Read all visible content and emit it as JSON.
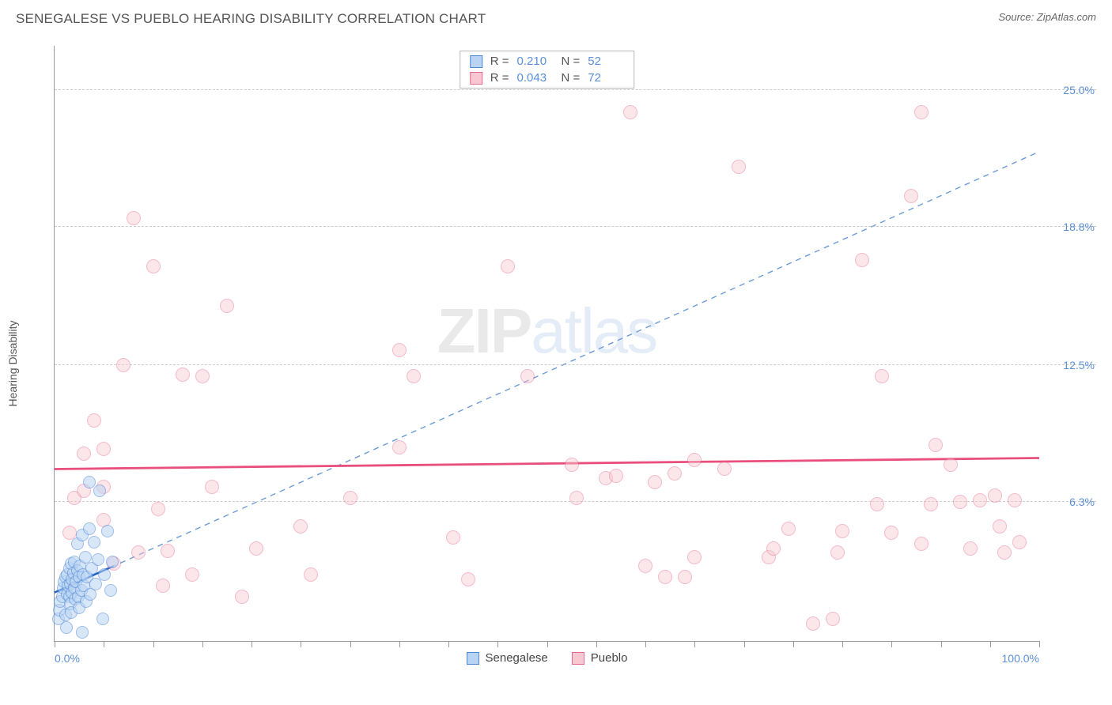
{
  "header": {
    "title": "SENEGALESE VS PUEBLO HEARING DISABILITY CORRELATION CHART",
    "source": "Source: ZipAtlas.com"
  },
  "watermark": {
    "left": "ZIP",
    "right": "atlas"
  },
  "chart": {
    "type": "scatter",
    "background_color": "#ffffff",
    "grid_color": "#cccccc",
    "axis_color": "#999999",
    "tick_label_color": "#5b8fd6",
    "ylabel": "Hearing Disability",
    "ylabel_fontsize": 14,
    "xlim": [
      0,
      100
    ],
    "ylim": [
      0,
      27
    ],
    "yticks": [
      {
        "v": 6.3,
        "label": "6.3%"
      },
      {
        "v": 12.5,
        "label": "12.5%"
      },
      {
        "v": 18.8,
        "label": "18.8%"
      },
      {
        "v": 25.0,
        "label": "25.0%"
      }
    ],
    "xticks_minor": [
      0,
      5,
      10,
      15,
      20,
      25,
      30,
      35,
      40,
      45,
      50,
      55,
      60,
      65,
      70,
      75,
      80,
      85,
      90,
      95,
      100
    ],
    "xticks_labels": [
      {
        "v": 0,
        "label": "0.0%",
        "align": "left"
      },
      {
        "v": 100,
        "label": "100.0%",
        "align": "right"
      }
    ],
    "series": {
      "senegalese": {
        "label": "Senegalese",
        "fill": "#b9d4f3",
        "stroke": "#4f87d6",
        "marker_radius": 8,
        "stroke_width": 1.2,
        "fill_opacity": 0.55,
        "trend": {
          "solid": {
            "x1": 0,
            "y1": 2.2,
            "x2": 6,
            "y2": 3.4,
            "color": "#1f63c7",
            "width": 2.5,
            "dash": ""
          },
          "dashed": {
            "x1": 0,
            "y1": 2.2,
            "x2": 100,
            "y2": 22.2,
            "color": "#6b9bd8",
            "width": 1.4,
            "dash": "7,6"
          }
        },
        "points": [
          {
            "x": 0.4,
            "y": 1.0
          },
          {
            "x": 0.5,
            "y": 1.4
          },
          {
            "x": 0.6,
            "y": 1.8
          },
          {
            "x": 0.8,
            "y": 2.0
          },
          {
            "x": 0.9,
            "y": 2.4
          },
          {
            "x": 1.0,
            "y": 2.7
          },
          {
            "x": 1.1,
            "y": 1.2
          },
          {
            "x": 1.1,
            "y": 2.9
          },
          {
            "x": 1.2,
            "y": 0.6
          },
          {
            "x": 1.3,
            "y": 3.0
          },
          {
            "x": 1.3,
            "y": 2.1
          },
          {
            "x": 1.4,
            "y": 2.5
          },
          {
            "x": 1.5,
            "y": 2.0
          },
          {
            "x": 1.5,
            "y": 3.3
          },
          {
            "x": 1.6,
            "y": 1.7
          },
          {
            "x": 1.6,
            "y": 2.6
          },
          {
            "x": 1.7,
            "y": 3.5
          },
          {
            "x": 1.7,
            "y": 1.3
          },
          {
            "x": 1.8,
            "y": 2.2
          },
          {
            "x": 1.8,
            "y": 2.8
          },
          {
            "x": 1.9,
            "y": 3.1
          },
          {
            "x": 2.0,
            "y": 2.4
          },
          {
            "x": 2.0,
            "y": 3.6
          },
          {
            "x": 2.1,
            "y": 1.9
          },
          {
            "x": 2.2,
            "y": 2.7
          },
          {
            "x": 2.3,
            "y": 3.2
          },
          {
            "x": 2.3,
            "y": 4.4
          },
          {
            "x": 2.4,
            "y": 2.0
          },
          {
            "x": 2.5,
            "y": 2.9
          },
          {
            "x": 2.5,
            "y": 1.5
          },
          {
            "x": 2.6,
            "y": 3.4
          },
          {
            "x": 2.7,
            "y": 2.3
          },
          {
            "x": 2.8,
            "y": 4.8
          },
          {
            "x": 2.8,
            "y": 0.4
          },
          {
            "x": 2.9,
            "y": 3.0
          },
          {
            "x": 3.0,
            "y": 2.5
          },
          {
            "x": 3.1,
            "y": 3.8
          },
          {
            "x": 3.2,
            "y": 1.8
          },
          {
            "x": 3.3,
            "y": 2.9
          },
          {
            "x": 3.5,
            "y": 5.1
          },
          {
            "x": 3.6,
            "y": 2.1
          },
          {
            "x": 3.8,
            "y": 3.3
          },
          {
            "x": 4.0,
            "y": 4.5
          },
          {
            "x": 4.2,
            "y": 2.6
          },
          {
            "x": 4.4,
            "y": 3.7
          },
          {
            "x": 4.6,
            "y": 6.8
          },
          {
            "x": 4.9,
            "y": 1.0
          },
          {
            "x": 5.1,
            "y": 3.0
          },
          {
            "x": 5.4,
            "y": 5.0
          },
          {
            "x": 5.7,
            "y": 2.3
          },
          {
            "x": 3.5,
            "y": 7.2
          },
          {
            "x": 5.9,
            "y": 3.6
          }
        ]
      },
      "pueblo": {
        "label": "Pueblo",
        "fill": "#f7c8d2",
        "stroke": "#e76a8e",
        "marker_radius": 9,
        "stroke_width": 1.2,
        "fill_opacity": 0.45,
        "trend": {
          "solid": {
            "x1": 0,
            "y1": 7.8,
            "x2": 100,
            "y2": 8.3,
            "color": "#e94f7c",
            "width": 2.8,
            "dash": ""
          }
        },
        "points": [
          {
            "x": 1.5,
            "y": 4.9
          },
          {
            "x": 2.0,
            "y": 6.5
          },
          {
            "x": 3.0,
            "y": 8.5
          },
          {
            "x": 3.0,
            "y": 6.8
          },
          {
            "x": 4.0,
            "y": 10.0
          },
          {
            "x": 5.0,
            "y": 5.5
          },
          {
            "x": 5.0,
            "y": 7.0
          },
          {
            "x": 5.0,
            "y": 8.7
          },
          {
            "x": 6.0,
            "y": 3.5
          },
          {
            "x": 7.0,
            "y": 12.5
          },
          {
            "x": 8.0,
            "y": 19.2
          },
          {
            "x": 8.5,
            "y": 4.0
          },
          {
            "x": 10.0,
            "y": 17.0
          },
          {
            "x": 10.5,
            "y": 6.0
          },
          {
            "x": 11.0,
            "y": 2.5
          },
          {
            "x": 11.5,
            "y": 4.1
          },
          {
            "x": 13.0,
            "y": 12.1
          },
          {
            "x": 14.0,
            "y": 3.0
          },
          {
            "x": 15.0,
            "y": 12.0
          },
          {
            "x": 16.0,
            "y": 7.0
          },
          {
            "x": 17.5,
            "y": 15.2
          },
          {
            "x": 19.0,
            "y": 2.0
          },
          {
            "x": 20.5,
            "y": 4.2
          },
          {
            "x": 25.0,
            "y": 5.2
          },
          {
            "x": 26.0,
            "y": 3.0
          },
          {
            "x": 35.0,
            "y": 8.8
          },
          {
            "x": 35.0,
            "y": 13.2
          },
          {
            "x": 36.5,
            "y": 12.0
          },
          {
            "x": 40.5,
            "y": 4.7
          },
          {
            "x": 42.0,
            "y": 2.8
          },
          {
            "x": 46.0,
            "y": 17.0
          },
          {
            "x": 48.0,
            "y": 12.0
          },
          {
            "x": 52.5,
            "y": 8.0
          },
          {
            "x": 53.0,
            "y": 6.5
          },
          {
            "x": 56.0,
            "y": 7.4
          },
          {
            "x": 58.5,
            "y": 24.0
          },
          {
            "x": 60.0,
            "y": 3.4
          },
          {
            "x": 61.0,
            "y": 7.2
          },
          {
            "x": 62.0,
            "y": 2.9
          },
          {
            "x": 63.0,
            "y": 7.6
          },
          {
            "x": 64.0,
            "y": 2.9
          },
          {
            "x": 65.0,
            "y": 3.8
          },
          {
            "x": 65.0,
            "y": 8.2
          },
          {
            "x": 68.0,
            "y": 7.8
          },
          {
            "x": 69.5,
            "y": 21.5
          },
          {
            "x": 72.5,
            "y": 3.8
          },
          {
            "x": 73.0,
            "y": 4.2
          },
          {
            "x": 74.5,
            "y": 5.1
          },
          {
            "x": 77.0,
            "y": 0.8
          },
          {
            "x": 79.0,
            "y": 1.0
          },
          {
            "x": 79.5,
            "y": 4.0
          },
          {
            "x": 80.0,
            "y": 5.0
          },
          {
            "x": 82.0,
            "y": 17.3
          },
          {
            "x": 83.5,
            "y": 6.2
          },
          {
            "x": 84.0,
            "y": 12.0
          },
          {
            "x": 85.0,
            "y": 4.9
          },
          {
            "x": 87.0,
            "y": 20.2
          },
          {
            "x": 88.0,
            "y": 4.4
          },
          {
            "x": 89.0,
            "y": 6.2
          },
          {
            "x": 89.5,
            "y": 8.9
          },
          {
            "x": 91.0,
            "y": 8.0
          },
          {
            "x": 92.0,
            "y": 6.3
          },
          {
            "x": 93.0,
            "y": 4.2
          },
          {
            "x": 94.0,
            "y": 6.4
          },
          {
            "x": 95.5,
            "y": 6.6
          },
          {
            "x": 96.0,
            "y": 5.2
          },
          {
            "x": 96.5,
            "y": 4.0
          },
          {
            "x": 97.5,
            "y": 6.4
          },
          {
            "x": 98.0,
            "y": 4.5
          },
          {
            "x": 88.0,
            "y": 24.0
          },
          {
            "x": 57.0,
            "y": 7.5
          },
          {
            "x": 30.0,
            "y": 6.5
          }
        ]
      }
    },
    "stats": {
      "rows": [
        {
          "swatch_fill": "#b9d4f3",
          "swatch_stroke": "#4f87d6",
          "r_label": "R =",
          "r_val": "0.210",
          "n_label": "N =",
          "n_val": "52"
        },
        {
          "swatch_fill": "#f7c8d2",
          "swatch_stroke": "#e76a8e",
          "r_label": "R =",
          "r_val": "0.043",
          "n_label": "N =",
          "n_val": "72"
        }
      ]
    },
    "legend": [
      {
        "swatch_fill": "#b9d4f3",
        "swatch_stroke": "#4f87d6",
        "label": "Senegalese"
      },
      {
        "swatch_fill": "#f7c8d2",
        "swatch_stroke": "#e76a8e",
        "label": "Pueblo"
      }
    ]
  }
}
